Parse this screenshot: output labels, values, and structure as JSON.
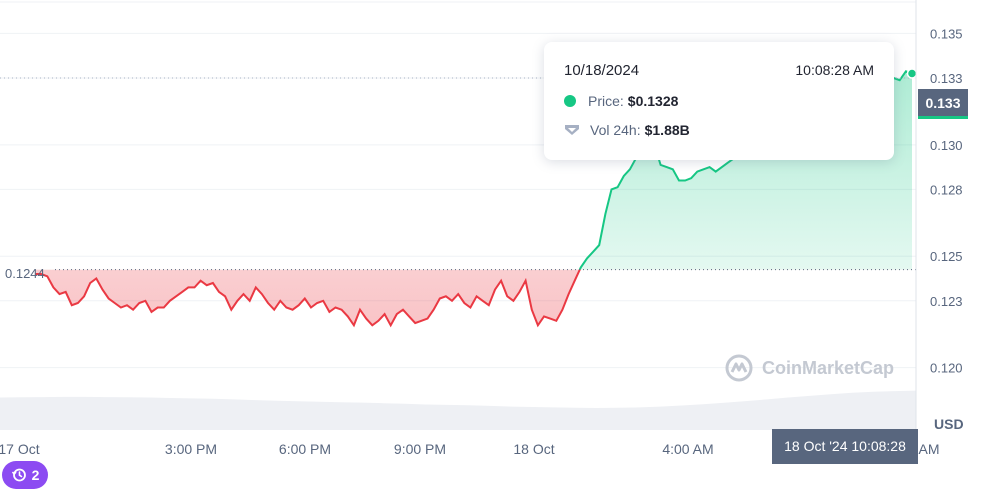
{
  "chart_data": {
    "type": "area",
    "x_ticks": [
      "17 Oct",
      "3:00 PM",
      "6:00 PM",
      "9:00 PM",
      "18 Oct",
      "4:00 AM",
      "AM"
    ],
    "y_ticks": [
      "0.135",
      "0.133",
      "0.130",
      "0.128",
      "0.125",
      "0.123",
      "0.120"
    ],
    "ylim": [
      0.1172,
      0.1365
    ],
    "y_unit": "USD",
    "reference_price": 0.1244,
    "reference_price_label": "0.1244",
    "current_price": 0.133,
    "current_price_label": "0.133",
    "crosshair_time": "18 Oct '24 10:08:28",
    "colors": {
      "up": "#16c784",
      "down": "#ea3943"
    },
    "series": [
      {
        "values": [
          0.1242,
          0.1242,
          0.1241,
          0.1236,
          0.1233,
          0.1234,
          0.1228,
          0.1229,
          0.1232,
          0.1238,
          0.124,
          0.1235,
          0.1231,
          0.1229,
          0.1227,
          0.1228,
          0.1226,
          0.1229,
          0.123,
          0.1225,
          0.1227,
          0.1227,
          0.123,
          0.1232,
          0.1234,
          0.1236,
          0.1236,
          0.1239,
          0.1237,
          0.1238,
          0.1234,
          0.1232,
          0.1226,
          0.123,
          0.1233,
          0.123,
          0.1236,
          0.1233,
          0.1229,
          0.1226,
          0.123,
          0.1227,
          0.1226,
          0.1228,
          0.1231,
          0.1227,
          0.1229,
          0.123,
          0.1225,
          0.1227,
          0.1226,
          0.1223,
          0.1219,
          0.1226,
          0.1222,
          0.1219,
          0.1221,
          0.1224,
          0.1219,
          0.1224,
          0.1226,
          0.1223,
          0.122,
          0.1221,
          0.1222,
          0.1226,
          0.1231,
          0.1232,
          0.123,
          0.1233,
          0.1229,
          0.1227,
          0.1232,
          0.123,
          0.1228,
          0.1235,
          0.1239,
          0.1232,
          0.123,
          0.1234,
          0.1239,
          0.1226,
          0.1219,
          0.1223,
          0.1222,
          0.1221,
          0.1226,
          0.1233,
          0.1239,
          0.1245,
          0.1249,
          0.1252,
          0.1255,
          0.1269,
          0.128,
          0.1281,
          0.1286,
          0.1289,
          0.1294,
          0.1303,
          0.1307,
          0.13,
          0.1291,
          0.129,
          0.1289,
          0.1284,
          0.1284,
          0.1285,
          0.1288,
          0.1289,
          0.129,
          0.1288,
          0.129,
          0.1292,
          0.1294,
          0.1296,
          0.1298,
          0.1301,
          0.1305,
          0.131,
          0.1315,
          0.132,
          0.1322,
          0.1318,
          0.1321,
          0.1325,
          0.1319,
          0.1322,
          0.1328,
          0.133,
          0.1331,
          0.133,
          0.1329,
          0.133,
          0.1331,
          0.133,
          0.1328,
          0.1331,
          0.133,
          0.1331,
          0.133,
          0.1329,
          0.1333,
          0.1332
        ]
      }
    ],
    "volume": [
      1.55,
      1.56,
      1.57,
      1.58,
      1.58,
      1.57,
      1.56,
      1.55,
      1.53,
      1.51,
      1.49,
      1.46,
      1.43,
      1.4,
      1.37,
      1.35,
      1.33,
      1.31,
      1.28,
      1.25,
      1.22,
      1.2,
      1.18,
      1.15,
      1.12,
      1.1,
      1.08,
      1.06,
      1.05,
      1.06,
      1.08,
      1.12,
      1.17,
      1.23,
      1.3,
      1.38,
      1.46,
      1.55,
      1.63,
      1.71,
      1.78,
      1.83,
      1.86,
      1.88
    ],
    "watermark": "CoinMarketCap"
  },
  "tooltip": {
    "date": "10/18/2024",
    "time": "10:08:28 AM",
    "price_label": "Price:",
    "price_value": "$0.1328",
    "vol_label": "Vol 24h:",
    "vol_value": "$1.88B"
  },
  "history_badge": {
    "count": "2"
  }
}
